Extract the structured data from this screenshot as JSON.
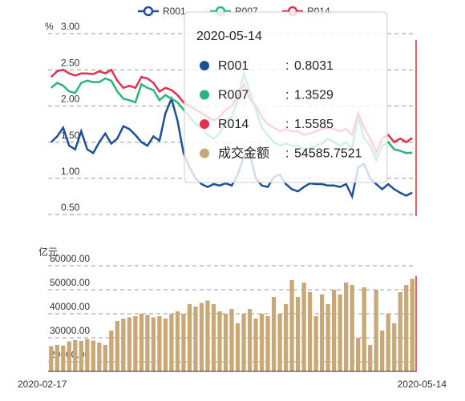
{
  "chart_data": [
    {
      "type": "line",
      "y_label": "%",
      "categories": [
        "2020-02-17",
        null,
        null,
        null,
        null,
        null,
        null,
        null,
        null,
        null,
        null,
        null,
        null,
        null,
        null,
        null,
        null,
        null,
        null,
        null,
        null,
        null,
        null,
        null,
        null,
        null,
        null,
        null,
        null,
        null,
        null,
        null,
        null,
        null,
        null,
        null,
        null,
        null,
        null,
        null,
        null,
        null,
        null,
        null,
        null,
        null,
        null,
        null,
        null,
        null,
        null,
        null,
        null,
        null,
        null,
        null,
        null,
        null,
        null,
        null,
        "2020-05-14"
      ],
      "ylim": [
        0.5,
        3.0
      ],
      "yticks": [
        {
          "value": 0.5,
          "label": "0.50"
        },
        {
          "value": 1.0,
          "label": "1.00"
        },
        {
          "value": 1.5,
          "label": "1.50"
        },
        {
          "value": 2.0,
          "label": "2.00"
        },
        {
          "value": 2.5,
          "label": "2.50"
        },
        {
          "value": 3.0,
          "label": "3.00"
        }
      ],
      "grid": true,
      "legend": "top",
      "series": [
        {
          "name": "R001",
          "color": "#1d4f99",
          "values": [
            1.5,
            1.58,
            1.7,
            1.45,
            1.4,
            1.65,
            1.4,
            1.35,
            1.5,
            1.62,
            1.48,
            1.55,
            1.72,
            1.68,
            1.6,
            1.5,
            1.45,
            1.58,
            1.52,
            1.9,
            2.1,
            1.8,
            1.35,
            1.15,
            1.0,
            0.92,
            0.88,
            0.92,
            0.9,
            0.93,
            0.9,
            1.05,
            1.3,
            1.35,
            1.0,
            0.9,
            0.88,
            1.02,
            1.05,
            0.92,
            0.85,
            0.82,
            0.88,
            0.93,
            0.92,
            0.92,
            0.9,
            0.9,
            0.88,
            0.92,
            0.75,
            1.15,
            1.2,
            1.0,
            0.92,
            0.85,
            0.92,
            0.85,
            0.8,
            0.76,
            0.8031
          ]
        },
        {
          "name": "R007",
          "color": "#2bb57c",
          "values": [
            2.25,
            2.32,
            2.28,
            2.2,
            2.18,
            2.32,
            2.35,
            2.33,
            2.33,
            2.38,
            2.35,
            2.2,
            2.1,
            2.08,
            2.05,
            2.3,
            2.25,
            2.22,
            2.08,
            2.15,
            2.1,
            2.05,
            1.95,
            1.85,
            1.75,
            1.7,
            1.6,
            1.55,
            1.62,
            1.8,
            1.85,
            2.1,
            2.45,
            2.2,
            1.95,
            1.7,
            1.6,
            1.5,
            1.45,
            1.48,
            1.45,
            1.45,
            1.4,
            1.42,
            1.45,
            1.48,
            1.55,
            1.5,
            1.45,
            1.5,
            1.4,
            1.85,
            1.55,
            1.45,
            1.25,
            1.45,
            1.5,
            1.4,
            1.38,
            1.35,
            1.3529
          ]
        },
        {
          "name": "R014",
          "color": "#e6304f",
          "values": [
            2.4,
            2.48,
            2.5,
            2.45,
            2.42,
            2.45,
            2.45,
            2.44,
            2.48,
            2.45,
            2.5,
            2.35,
            2.25,
            2.28,
            2.25,
            2.4,
            2.38,
            2.32,
            2.2,
            2.25,
            2.22,
            2.15,
            2.05,
            2.0,
            1.95,
            1.9,
            1.85,
            1.8,
            1.85,
            1.95,
            2.0,
            2.15,
            2.3,
            2.1,
            2.0,
            1.85,
            1.75,
            1.7,
            1.65,
            1.68,
            1.65,
            1.65,
            1.6,
            1.62,
            1.65,
            1.68,
            1.7,
            1.68,
            1.65,
            1.68,
            1.6,
            1.9,
            1.7,
            1.55,
            1.35,
            1.55,
            1.6,
            1.5,
            1.55,
            1.5,
            1.5585
          ]
        }
      ]
    },
    {
      "type": "bar",
      "y_label": "亿元",
      "categories": [
        "2020-02-17",
        null,
        null,
        null,
        null,
        null,
        null,
        null,
        null,
        null,
        null,
        null,
        null,
        null,
        null,
        null,
        null,
        null,
        null,
        null,
        null,
        null,
        null,
        null,
        null,
        null,
        null,
        null,
        null,
        null,
        null,
        null,
        null,
        null,
        null,
        null,
        null,
        null,
        null,
        null,
        null,
        null,
        null,
        null,
        null,
        null,
        null,
        null,
        null,
        null,
        null,
        null,
        null,
        null,
        null,
        null,
        null,
        null,
        null,
        null,
        "2020-05-14"
      ],
      "ylim": [
        16000,
        60000
      ],
      "yticks": [
        {
          "value": 20000,
          "label": "20000.00"
        },
        {
          "value": 30000,
          "label": "30000.00"
        },
        {
          "value": 40000,
          "label": "40000.00"
        },
        {
          "value": 50000,
          "label": "50000.00"
        },
        {
          "value": 60000,
          "label": "60000.00"
        }
      ],
      "grid": true,
      "series": [
        {
          "name": "成交金额",
          "color": "#c9a878",
          "values": [
            26500,
            27000,
            26800,
            28500,
            29000,
            28700,
            29500,
            28800,
            28000,
            27000,
            33000,
            37000,
            38000,
            38500,
            39000,
            40000,
            39500,
            38500,
            39000,
            38000,
            40000,
            41000,
            40000,
            44000,
            43000,
            44500,
            45500,
            44000,
            41000,
            40000,
            42000,
            36000,
            40000,
            42000,
            38000,
            40000,
            39000,
            47000,
            40000,
            44000,
            54000,
            47000,
            53000,
            49000,
            39000,
            48000,
            44000,
            50000,
            48000,
            53000,
            52000,
            30000,
            51000,
            27000,
            50000,
            33000,
            40000,
            36000,
            49000,
            52000,
            54585.7521
          ]
        }
      ]
    }
  ],
  "tooltip": {
    "separator": ":"
  }
}
